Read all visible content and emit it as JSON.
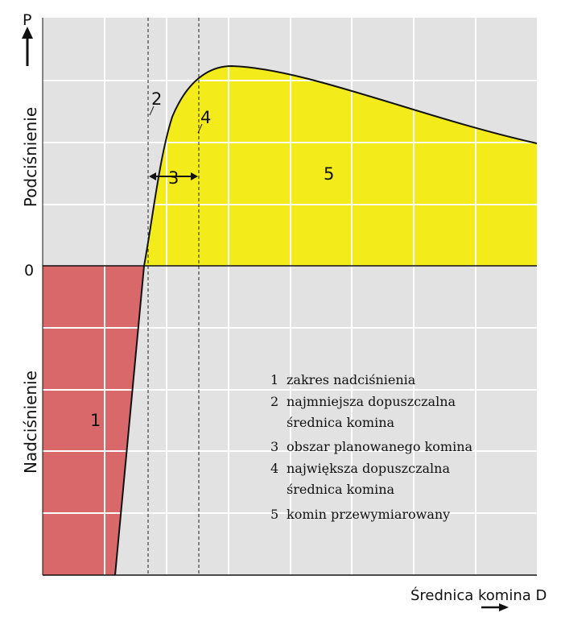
{
  "axes": {
    "y_symbol": "P",
    "zero": "0",
    "upper_label": "Podciśnienie",
    "lower_label": "Nadciśnienie",
    "x_label": "Średnica komina D"
  },
  "region_labels": {
    "r1": "1",
    "r2": "2",
    "r3": "3",
    "r4": "4",
    "r5": "5"
  },
  "legend": [
    {
      "num": "1",
      "lines": [
        "zakres nadciśnienia"
      ]
    },
    {
      "num": "2",
      "lines": [
        "najmniejsza dopuszczalna",
        "średnica komina"
      ]
    },
    {
      "num": "3",
      "lines": [
        "obszar planowanego komina"
      ]
    },
    {
      "num": "4",
      "lines": [
        "największa dopuszczalna",
        "średnica komina"
      ]
    },
    {
      "num": "5",
      "lines": [
        "komin przewymiarowany"
      ]
    }
  ],
  "colors": {
    "background_panel": "#e2e2e2",
    "grid": "#ffffff",
    "overpressure_zone": "#d9686b",
    "oversized_zone": "#f4ec1a",
    "curve": "#111111"
  }
}
